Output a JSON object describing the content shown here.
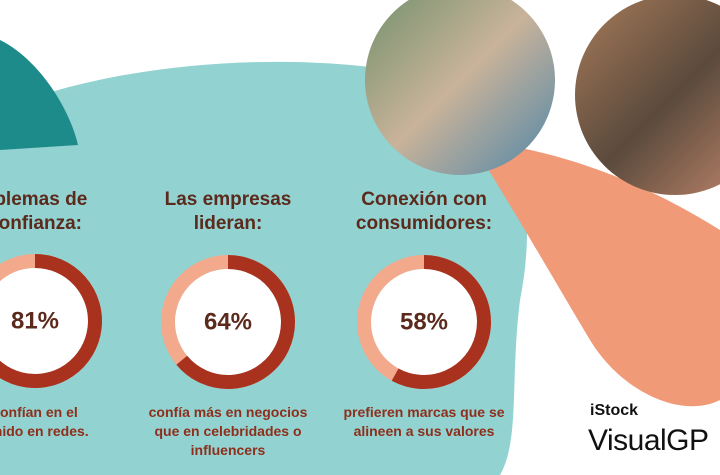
{
  "chart_data": [
    {
      "type": "donut",
      "title": "oblemas de\nconfianza:",
      "values": [
        81
      ],
      "value_labels": [
        "81%"
      ],
      "caption": "confían en el\ntenido en redes.",
      "color": "#a8321e",
      "rest_color": "#f3a98c"
    },
    {
      "type": "donut",
      "title": "Las empresas\nlideran:",
      "values": [
        64
      ],
      "value_labels": [
        "64%"
      ],
      "caption": "confía más en negocios\nque en celebridades o\ninfluencers",
      "color": "#a8321e",
      "rest_color": "#f3a98c"
    },
    {
      "type": "donut",
      "title": "Conexión con\nconsumidores:",
      "values": [
        58
      ],
      "value_labels": [
        "58%"
      ],
      "caption": "prefieren marcas que se\nalineen a sus valores",
      "color": "#a8321e",
      "rest_color": "#f3a98c"
    }
  ],
  "brand": {
    "name": "iStock",
    "subtitle": "VisualGP"
  }
}
